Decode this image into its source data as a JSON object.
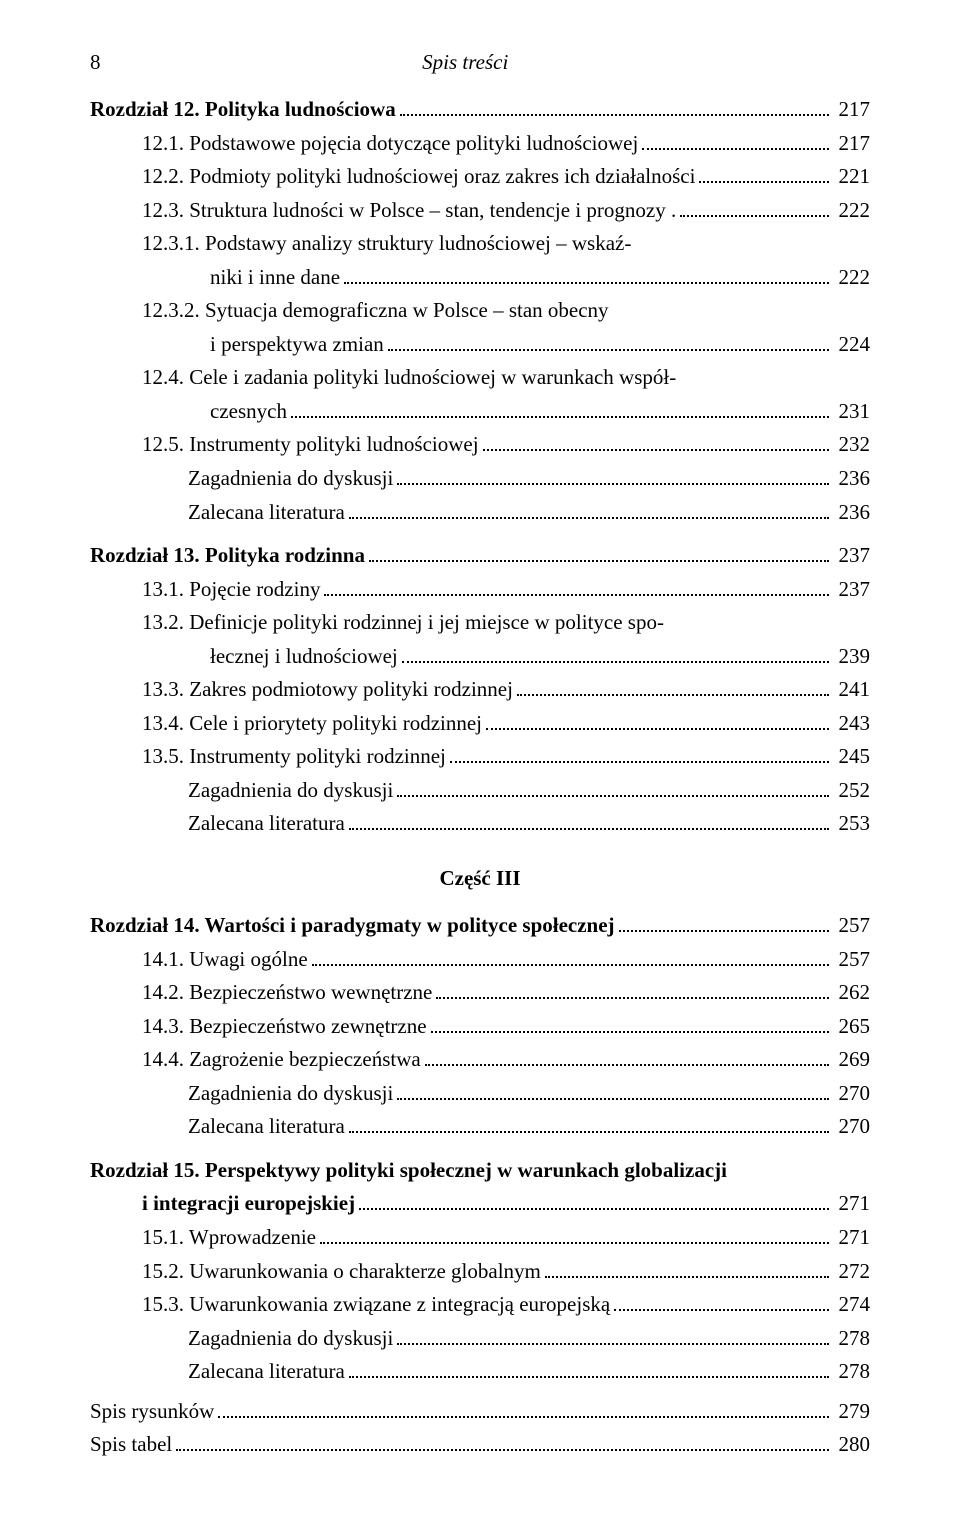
{
  "page_number": "8",
  "header": "Spis treści",
  "part_title": "Część III",
  "entries": [
    {
      "cls": "toc-line",
      "label_bold": "Rozdział 12. Polityka ludnościowa",
      "page": "217"
    },
    {
      "cls": "toc-line indent1",
      "label": "12.1. Podstawowe pojęcia dotyczące polityki ludnościowej",
      "page": "217"
    },
    {
      "cls": "toc-line indent1",
      "label": "12.2. Podmioty polityki ludnościowej oraz zakres ich działalności",
      "page": "221"
    },
    {
      "cls": "toc-line indent1",
      "label": "12.3. Struktura ludności w Polsce – stan, tendencje i prognozy .",
      "page": "222"
    },
    {
      "cls": "toc-line indent1",
      "label": "12.3.1. Podstawy analizy struktury ludnościowej – wskaź-",
      "nopage": true
    },
    {
      "cls": "toc-line indent2",
      "label": "niki i inne dane",
      "page": "222"
    },
    {
      "cls": "toc-line indent1",
      "label": "12.3.2. Sytuacja demograficzna w Polsce – stan obecny",
      "nopage": true
    },
    {
      "cls": "toc-line indent2",
      "label": "i perspektywa zmian",
      "page": "224"
    },
    {
      "cls": "toc-line indent1",
      "label": "12.4. Cele i zadania polityki ludnościowej w warunkach współ-",
      "nopage": true
    },
    {
      "cls": "toc-line indent2",
      "label": "czesnych",
      "page": "231"
    },
    {
      "cls": "toc-line indent1",
      "label": "12.5. Instrumenty polityki ludnościowej",
      "page": "232"
    },
    {
      "cls": "toc-line indent-sub",
      "label": "Zagadnienia do dyskusji",
      "page": "236"
    },
    {
      "cls": "toc-line indent-sub",
      "label": "Zalecana literatura",
      "page": "236"
    },
    {
      "gap": true
    },
    {
      "cls": "toc-line",
      "label_bold": "Rozdział 13. Polityka rodzinna",
      "page": "237"
    },
    {
      "cls": "toc-line indent1",
      "label": "13.1. Pojęcie rodziny",
      "page": "237"
    },
    {
      "cls": "toc-line indent1",
      "label": "13.2. Definicje polityki rodzinnej i jej miejsce w polityce spo-",
      "nopage": true
    },
    {
      "cls": "toc-line indent2",
      "label": "łecznej i ludnościowej",
      "page": "239"
    },
    {
      "cls": "toc-line indent1",
      "label": "13.3. Zakres podmiotowy polityki rodzinnej",
      "page": "241"
    },
    {
      "cls": "toc-line indent1",
      "label": "13.4. Cele i priorytety polityki rodzinnej",
      "page": "243"
    },
    {
      "cls": "toc-line indent1",
      "label": "13.5. Instrumenty polityki rodzinnej",
      "page": "245"
    },
    {
      "cls": "toc-line indent-sub",
      "label": "Zagadnienia do dyskusji",
      "page": "252"
    },
    {
      "cls": "toc-line indent-sub",
      "label": "Zalecana literatura",
      "page": "253"
    },
    {
      "part": true
    },
    {
      "cls": "toc-line",
      "label_bold": "Rozdział 14. Wartości i paradygmaty w polityce społecznej",
      "page": "257"
    },
    {
      "cls": "toc-line indent1",
      "label": "14.1. Uwagi ogólne",
      "page": "257"
    },
    {
      "cls": "toc-line indent1",
      "label": "14.2. Bezpieczeństwo wewnętrzne",
      "page": "262"
    },
    {
      "cls": "toc-line indent1",
      "label": "14.3. Bezpieczeństwo zewnętrzne",
      "page": "265"
    },
    {
      "cls": "toc-line indent1",
      "label": "14.4. Zagrożenie bezpieczeństwa",
      "page": "269"
    },
    {
      "cls": "toc-line indent-sub",
      "label": "Zagadnienia do dyskusji",
      "page": "270"
    },
    {
      "cls": "toc-line indent-sub",
      "label": "Zalecana literatura",
      "page": "270"
    },
    {
      "gap": true
    },
    {
      "cls": "toc-line",
      "label_bold": "Rozdział 15. Perspektywy polityki społecznej w warunkach globalizacji",
      "nopage": true
    },
    {
      "cls": "toc-line indent-hang",
      "label_bold": "i integracji europejskiej",
      "page": "271"
    },
    {
      "cls": "toc-line indent1",
      "label": "15.1. Wprowadzenie",
      "page": "271"
    },
    {
      "cls": "toc-line indent1",
      "label": "15.2. Uwarunkowania o charakterze globalnym",
      "page": "272"
    },
    {
      "cls": "toc-line indent1",
      "label": "15.3. Uwarunkowania związane z integracją europejską",
      "page": "274"
    },
    {
      "cls": "toc-line indent-sub",
      "label": "Zagadnienia do dyskusji",
      "page": "278"
    },
    {
      "cls": "toc-line indent-sub",
      "label": "Zalecana literatura",
      "page": "278"
    },
    {
      "gap_small": true
    },
    {
      "cls": "toc-line",
      "label": "Spis rysunków",
      "page": "279"
    },
    {
      "cls": "toc-line",
      "label": "Spis tabel",
      "page": "280"
    }
  ]
}
